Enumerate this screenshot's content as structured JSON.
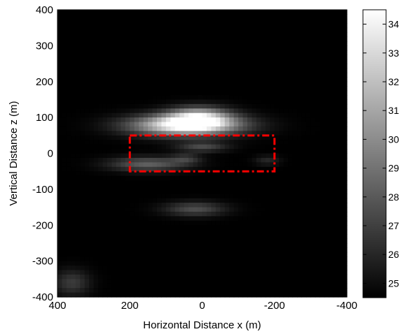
{
  "chart_data": {
    "type": "heatmap",
    "title": "",
    "xlabel": "Horizontal Distance x (m)",
    "ylabel": "Vertical Distance z (m)",
    "xlim": [
      400,
      -400
    ],
    "ylim": [
      -400,
      400
    ],
    "x_reversed": true,
    "x_ticks": [
      400,
      200,
      0,
      -200,
      -400
    ],
    "x_tick_labels": [
      "400",
      "200",
      "0",
      "-200",
      "-400"
    ],
    "y_ticks": [
      400,
      300,
      200,
      100,
      0,
      -100,
      -200,
      -300,
      -400
    ],
    "y_tick_labels": [
      "400",
      "300",
      "200",
      "100",
      "0",
      "-100",
      "-200",
      "-300",
      "-400"
    ],
    "colormap": "gray",
    "color_range": [
      24.5,
      34.5
    ],
    "colorbar_ticks": [
      34,
      33,
      32,
      31,
      30,
      29,
      28,
      27,
      26,
      25
    ],
    "colorbar_tick_labels": [
      "34",
      "33",
      "32",
      "31",
      "30",
      "29",
      "28",
      "27",
      "26",
      "25"
    ],
    "background_value": 24.5,
    "blobs": [
      {
        "x": 45,
        "z": 78,
        "sx": 105,
        "sz": 20,
        "peak": 34.4
      },
      {
        "x": 10,
        "z": 100,
        "sx": 60,
        "sz": 20,
        "peak": 31.5
      },
      {
        "x": 0,
        "z": 18,
        "sx": 50,
        "sz": 10,
        "peak": 27.3
      },
      {
        "x": 150,
        "z": -30,
        "sx": 75,
        "sz": 14,
        "peak": 28.2
      },
      {
        "x": 45,
        "z": -15,
        "sx": 30,
        "sz": 10,
        "peak": 26.5
      },
      {
        "x": 20,
        "z": -155,
        "sx": 60,
        "sz": 14,
        "peak": 27.5
      },
      {
        "x": 360,
        "z": -360,
        "sx": 35,
        "sz": 25,
        "peak": 26.8
      },
      {
        "x": -180,
        "z": -20,
        "sx": 25,
        "sz": 10,
        "peak": 26.0
      }
    ],
    "annotation": {
      "shape": "dashed-rectangle",
      "color": "#ff0000",
      "x_range": [
        200,
        -200
      ],
      "z_range": [
        -50,
        50
      ]
    }
  }
}
